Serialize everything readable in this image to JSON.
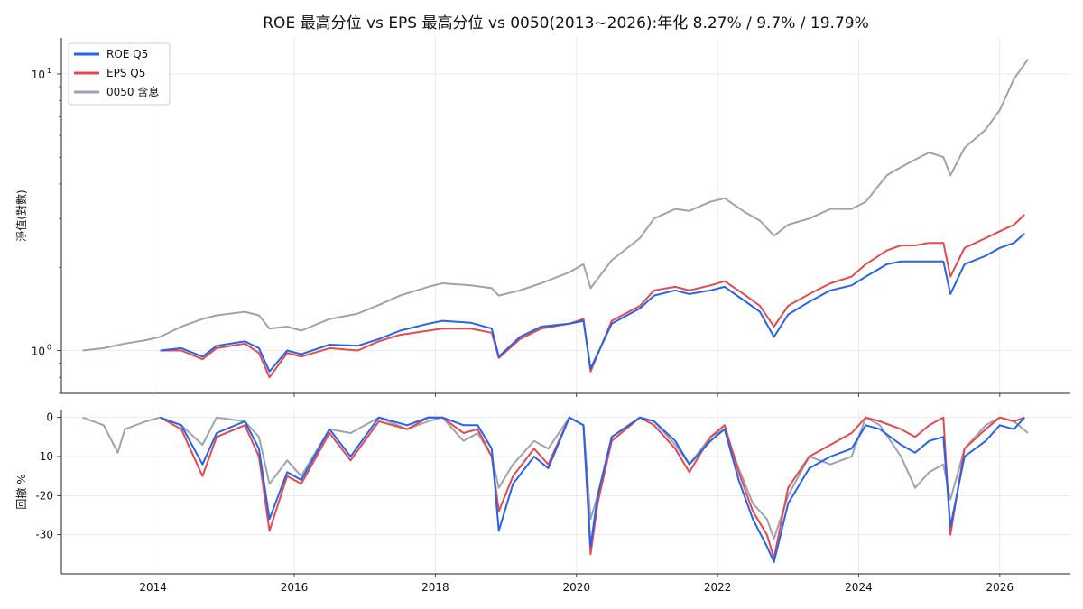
{
  "chart_data": {
    "type": "line",
    "title": "ROE 最高分位 vs EPS 最高分位 vs 0050(2013~2026):年化 8.27% / 9.7% / 19.79%",
    "legend_placement": "top-left",
    "colors": {
      "ROE Q5": "#2563eb",
      "EPS Q5": "#e5484d",
      "0050 含息": "#9ca3af"
    },
    "x_ticks": [
      "2014",
      "2016",
      "2018",
      "2020",
      "2022",
      "2024",
      "2026"
    ],
    "xlim": [
      2012.7,
      2027.0
    ],
    "panels": [
      {
        "id": "nav",
        "ylabel": "淨值(對數)",
        "yscale": "log",
        "ylim": [
          0.7,
          13.5
        ],
        "y_tick_labels": [
          {
            "value": 1,
            "base": "10",
            "exp": "0"
          },
          {
            "value": 10,
            "base": "10",
            "exp": "1"
          }
        ],
        "grid": true,
        "series": [
          {
            "name": "0050 含息",
            "x": [
              2013.0,
              2013.3,
              2013.6,
              2013.9,
              2014.1,
              2014.4,
              2014.7,
              2014.9,
              2015.3,
              2015.5,
              2015.65,
              2015.9,
              2016.1,
              2016.5,
              2016.9,
              2017.2,
              2017.5,
              2017.9,
              2018.1,
              2018.5,
              2018.8,
              2018.9,
              2019.2,
              2019.5,
              2019.9,
              2020.1,
              2020.2,
              2020.5,
              2020.9,
              2021.1,
              2021.4,
              2021.6,
              2021.9,
              2022.1,
              2022.4,
              2022.6,
              2022.8,
              2023.0,
              2023.3,
              2023.6,
              2023.9,
              2024.1,
              2024.4,
              2024.6,
              2024.8,
              2025.0,
              2025.2,
              2025.3,
              2025.5,
              2025.8,
              2026.0,
              2026.2,
              2026.4
            ],
            "values": [
              1.0,
              1.02,
              1.06,
              1.09,
              1.12,
              1.22,
              1.3,
              1.34,
              1.38,
              1.34,
              1.2,
              1.22,
              1.18,
              1.3,
              1.36,
              1.46,
              1.58,
              1.7,
              1.75,
              1.72,
              1.68,
              1.58,
              1.65,
              1.75,
              1.92,
              2.05,
              1.68,
              2.12,
              2.55,
              3.0,
              3.25,
              3.2,
              3.45,
              3.55,
              3.15,
              2.95,
              2.6,
              2.85,
              3.0,
              3.25,
              3.25,
              3.45,
              4.3,
              4.6,
              4.9,
              5.2,
              5.0,
              4.3,
              5.4,
              6.3,
              7.4,
              9.6,
              11.3
            ]
          },
          {
            "name": "EPS Q5",
            "x": [
              2014.1,
              2014.4,
              2014.7,
              2014.9,
              2015.3,
              2015.5,
              2015.65,
              2015.9,
              2016.1,
              2016.5,
              2016.9,
              2017.2,
              2017.5,
              2017.9,
              2018.1,
              2018.5,
              2018.8,
              2018.9,
              2019.2,
              2019.5,
              2019.9,
              2020.1,
              2020.2,
              2020.5,
              2020.9,
              2021.1,
              2021.4,
              2021.6,
              2021.9,
              2022.1,
              2022.4,
              2022.6,
              2022.8,
              2023.0,
              2023.3,
              2023.6,
              2023.9,
              2024.1,
              2024.4,
              2024.6,
              2024.8,
              2025.0,
              2025.2,
              2025.3,
              2025.5,
              2025.8,
              2026.0,
              2026.2,
              2026.35
            ],
            "values": [
              1.0,
              1.0,
              0.93,
              1.02,
              1.06,
              0.98,
              0.8,
              0.98,
              0.95,
              1.02,
              1.0,
              1.08,
              1.14,
              1.18,
              1.2,
              1.2,
              1.16,
              0.94,
              1.1,
              1.2,
              1.25,
              1.3,
              0.84,
              1.28,
              1.45,
              1.65,
              1.7,
              1.65,
              1.72,
              1.78,
              1.58,
              1.45,
              1.22,
              1.45,
              1.6,
              1.75,
              1.85,
              2.05,
              2.3,
              2.4,
              2.4,
              2.45,
              2.45,
              1.85,
              2.35,
              2.55,
              2.7,
              2.85,
              3.1
            ]
          },
          {
            "name": "ROE Q5",
            "x": [
              2014.1,
              2014.4,
              2014.7,
              2014.9,
              2015.3,
              2015.5,
              2015.65,
              2015.9,
              2016.1,
              2016.5,
              2016.9,
              2017.2,
              2017.5,
              2017.9,
              2018.1,
              2018.5,
              2018.8,
              2018.9,
              2019.2,
              2019.5,
              2019.9,
              2020.1,
              2020.2,
              2020.5,
              2020.9,
              2021.1,
              2021.4,
              2021.6,
              2021.9,
              2022.1,
              2022.4,
              2022.6,
              2022.8,
              2023.0,
              2023.3,
              2023.6,
              2023.9,
              2024.1,
              2024.4,
              2024.6,
              2024.8,
              2025.0,
              2025.2,
              2025.3,
              2025.5,
              2025.8,
              2026.0,
              2026.2,
              2026.35
            ],
            "values": [
              1.0,
              1.02,
              0.95,
              1.04,
              1.08,
              1.02,
              0.84,
              1.0,
              0.97,
              1.05,
              1.04,
              1.1,
              1.18,
              1.25,
              1.28,
              1.26,
              1.2,
              0.95,
              1.12,
              1.22,
              1.25,
              1.28,
              0.86,
              1.25,
              1.42,
              1.58,
              1.65,
              1.6,
              1.65,
              1.7,
              1.5,
              1.38,
              1.12,
              1.35,
              1.5,
              1.65,
              1.72,
              1.85,
              2.05,
              2.1,
              2.1,
              2.1,
              2.1,
              1.6,
              2.05,
              2.2,
              2.35,
              2.45,
              2.65
            ]
          }
        ]
      },
      {
        "id": "drawdown",
        "ylabel": "回撤 %",
        "yscale": "linear",
        "ylim": [
          -40,
          2
        ],
        "y_ticks": [
          "0",
          "-10",
          "-20",
          "-30"
        ],
        "grid": true,
        "series": [
          {
            "name": "0050 含息",
            "x": [
              2013.0,
              2013.3,
              2013.5,
              2013.6,
              2013.9,
              2014.1,
              2014.4,
              2014.7,
              2014.9,
              2015.3,
              2015.5,
              2015.65,
              2015.9,
              2016.1,
              2016.5,
              2016.8,
              2017.2,
              2017.6,
              2017.9,
              2018.1,
              2018.4,
              2018.6,
              2018.8,
              2018.9,
              2019.1,
              2019.4,
              2019.6,
              2019.9,
              2020.1,
              2020.2,
              2020.3,
              2020.5,
              2020.9,
              2021.1,
              2021.4,
              2021.6,
              2021.9,
              2022.1,
              2022.3,
              2022.5,
              2022.7,
              2022.8,
              2023.0,
              2023.3,
              2023.6,
              2023.9,
              2024.1,
              2024.3,
              2024.6,
              2024.8,
              2025.0,
              2025.2,
              2025.3,
              2025.5,
              2025.8,
              2026.0,
              2026.2,
              2026.4
            ],
            "values": [
              0,
              -2,
              -9,
              -3,
              -1,
              0,
              -2,
              -7,
              0,
              -1,
              -5,
              -17,
              -11,
              -15,
              -3,
              -4,
              0,
              -3,
              -1,
              0,
              -6,
              -4,
              -10,
              -18,
              -12,
              -6,
              -8,
              0,
              -2,
              -26,
              -20,
              -5,
              0,
              -1,
              -7,
              -12,
              -5,
              -3,
              -13,
              -22,
              -26,
              -31,
              -20,
              -10,
              -12,
              -10,
              0,
              -2,
              -10,
              -18,
              -14,
              -12,
              -21,
              -8,
              -2,
              0,
              -1,
              -4
            ]
          },
          {
            "name": "EPS Q5",
            "x": [
              2014.1,
              2014.4,
              2014.7,
              2014.9,
              2015.3,
              2015.5,
              2015.65,
              2015.9,
              2016.1,
              2016.5,
              2016.8,
              2017.2,
              2017.6,
              2017.9,
              2018.1,
              2018.4,
              2018.6,
              2018.8,
              2018.9,
              2019.1,
              2019.4,
              2019.6,
              2019.9,
              2020.1,
              2020.2,
              2020.3,
              2020.5,
              2020.9,
              2021.1,
              2021.4,
              2021.6,
              2021.9,
              2022.1,
              2022.3,
              2022.5,
              2022.7,
              2022.8,
              2023.0,
              2023.3,
              2023.6,
              2023.9,
              2024.1,
              2024.3,
              2024.6,
              2024.8,
              2025.0,
              2025.2,
              2025.3,
              2025.5,
              2025.8,
              2026.0,
              2026.2,
              2026.35
            ],
            "values": [
              0,
              -3,
              -15,
              -5,
              -2,
              -10,
              -29,
              -15,
              -17,
              -4,
              -11,
              -1,
              -3,
              0,
              0,
              -4,
              -3,
              -10,
              -24,
              -15,
              -8,
              -12,
              0,
              -2,
              -35,
              -22,
              -6,
              0,
              -2,
              -8,
              -14,
              -5,
              -2,
              -14,
              -24,
              -30,
              -36,
              -18,
              -10,
              -7,
              -4,
              0,
              -1,
              -3,
              -5,
              -2,
              0,
              -30,
              -8,
              -3,
              0,
              -1,
              0
            ]
          },
          {
            "name": "ROE Q5",
            "x": [
              2014.1,
              2014.4,
              2014.7,
              2014.9,
              2015.3,
              2015.5,
              2015.65,
              2015.9,
              2016.1,
              2016.5,
              2016.8,
              2017.2,
              2017.6,
              2017.9,
              2018.1,
              2018.4,
              2018.6,
              2018.8,
              2018.9,
              2019.1,
              2019.4,
              2019.6,
              2019.9,
              2020.1,
              2020.2,
              2020.3,
              2020.5,
              2020.9,
              2021.1,
              2021.4,
              2021.6,
              2021.9,
              2022.1,
              2022.3,
              2022.5,
              2022.7,
              2022.8,
              2023.0,
              2023.3,
              2023.6,
              2023.9,
              2024.1,
              2024.3,
              2024.6,
              2024.8,
              2025.0,
              2025.2,
              2025.3,
              2025.5,
              2025.8,
              2026.0,
              2026.2,
              2026.35
            ],
            "values": [
              0,
              -2,
              -12,
              -4,
              -1,
              -8,
              -26,
              -14,
              -16,
              -3,
              -10,
              0,
              -2,
              0,
              0,
              -2,
              -2,
              -8,
              -29,
              -17,
              -10,
              -13,
              0,
              -2,
              -33,
              -20,
              -5,
              0,
              -1,
              -6,
              -12,
              -6,
              -3,
              -16,
              -26,
              -33,
              -37,
              -22,
              -13,
              -10,
              -8,
              -2,
              -3,
              -7,
              -9,
              -6,
              -5,
              -28,
              -10,
              -6,
              -2,
              -3,
              0
            ]
          }
        ]
      }
    ]
  }
}
